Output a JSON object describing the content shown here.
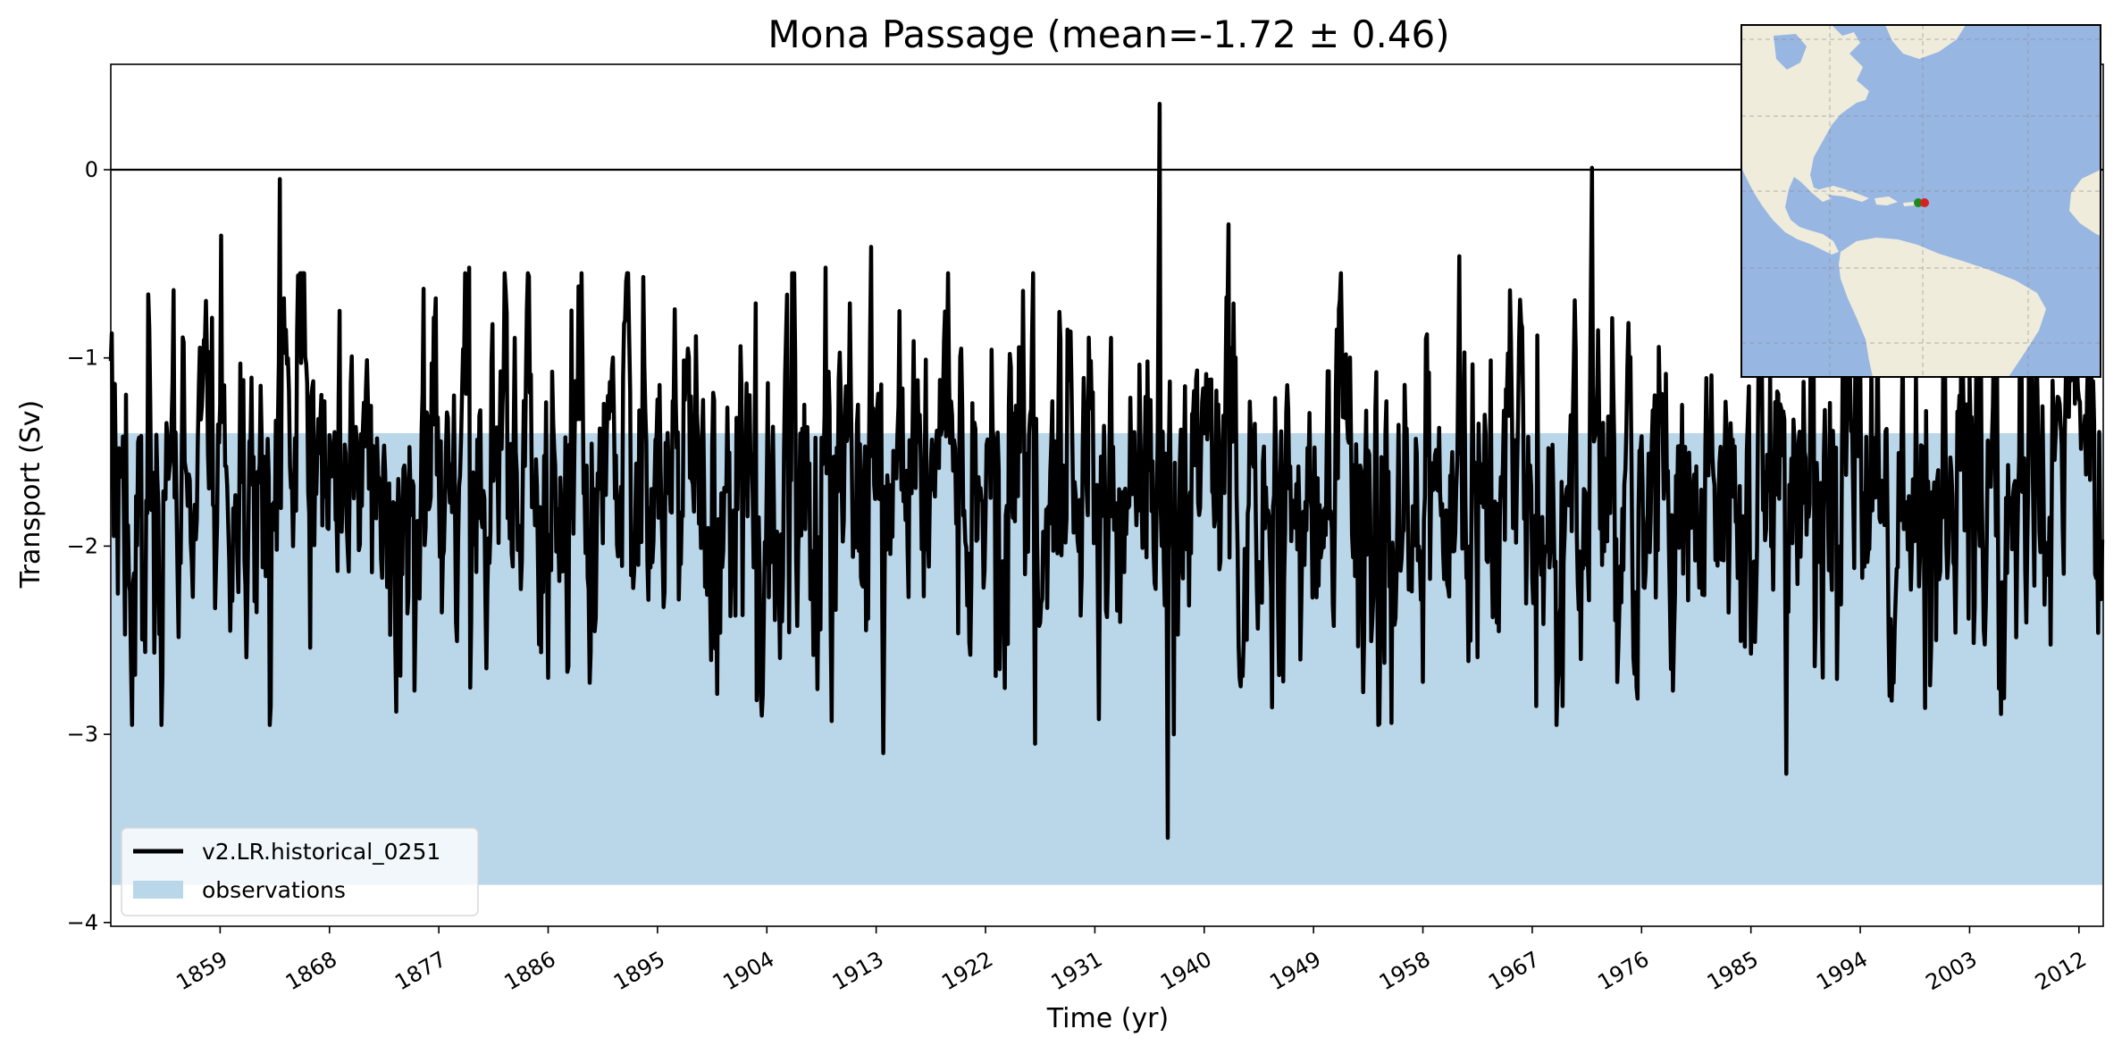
{
  "chart_data": {
    "type": "line",
    "title": "Mona Passage (mean=-1.72 ± 0.46)",
    "xlabel": "Time (yr)",
    "ylabel": "Transport (Sv)",
    "xlim": [
      1850,
      2014
    ],
    "ylim": [
      -4.02,
      0.56
    ],
    "xticks": [
      1859,
      1868,
      1877,
      1886,
      1895,
      1904,
      1913,
      1922,
      1931,
      1940,
      1949,
      1958,
      1967,
      1976,
      1985,
      1994,
      2003,
      2012
    ],
    "yticks": [
      0,
      -1,
      -2,
      -3,
      -4
    ],
    "ytick_labels": [
      "0",
      "−1",
      "−2",
      "−3",
      "−4"
    ],
    "hline": 0,
    "observations_band": [
      -3.8,
      -1.4
    ],
    "legend_position": "lower-left",
    "series": [
      {
        "name": "v2.LR.historical_0251",
        "color": "#000000",
        "seed": 251,
        "mean": -1.72,
        "std": 0.46,
        "points_per_year": 12,
        "anchor_points": [
          [
            1850.05,
            -0.87
          ],
          [
            1851.2,
            -2.47
          ],
          [
            1855.2,
            -0.64
          ],
          [
            1859.1,
            -0.35
          ],
          [
            1859.8,
            -2.45
          ],
          [
            1863.9,
            -0.05
          ],
          [
            1866.4,
            -2.54
          ],
          [
            1868.8,
            -0.75
          ],
          [
            1873.5,
            -2.88
          ],
          [
            1879.5,
            -0.52
          ],
          [
            1880.9,
            -2.65
          ],
          [
            1886.0,
            -2.7
          ],
          [
            1888.5,
            -0.62
          ],
          [
            1893.8,
            -0.57
          ],
          [
            1903.1,
            -0.71
          ],
          [
            1908.2,
            -2.76
          ],
          [
            1908.8,
            -0.52
          ],
          [
            1909.3,
            -2.93
          ],
          [
            1912.6,
            -0.41
          ],
          [
            1913.6,
            -3.1
          ],
          [
            1926.1,
            -3.05
          ],
          [
            1931.3,
            -2.92
          ],
          [
            1936.3,
            0.35
          ],
          [
            1937.0,
            -3.55
          ],
          [
            1937.5,
            -3.0
          ],
          [
            1942.0,
            -0.29
          ],
          [
            1943.2,
            -2.69
          ],
          [
            1955.4,
            -2.94
          ],
          [
            1961.0,
            -0.46
          ],
          [
            1967.3,
            -2.85
          ],
          [
            1971.9,
            0.01
          ],
          [
            1975.7,
            -2.81
          ],
          [
            1987.9,
            -3.21
          ],
          [
            1999.3,
            -2.86
          ],
          [
            2013.4,
            -2.17
          ]
        ]
      }
    ],
    "legend": [
      {
        "label": "v2.LR.historical_0251",
        "kind": "line",
        "color": "#000000"
      },
      {
        "label": "observations",
        "kind": "patch",
        "color": "#bad6e9"
      }
    ]
  },
  "inset_map": {
    "land_color": "#efecdc",
    "ocean_color": "#98b6e2",
    "grid": true,
    "markers": [
      {
        "color": "#1a8a1a"
      },
      {
        "color": "#d62020"
      }
    ]
  }
}
